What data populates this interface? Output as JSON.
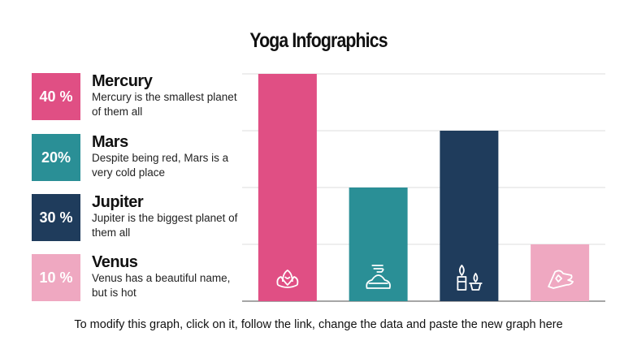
{
  "title": "Yoga Infographics",
  "items": [
    {
      "pct": "40 %",
      "name": "Mercury",
      "desc": "Mercury is the smallest planet of them all",
      "color": "#e04f84"
    },
    {
      "pct": "20%",
      "name": "Mars",
      "desc": "Despite being red, Mars is a very cold place",
      "color": "#2a8f96"
    },
    {
      "pct": "30 %",
      "name": "Jupiter",
      "desc": "Jupiter is the biggest planet of them all",
      "color": "#1f3c5c"
    },
    {
      "pct": "10 %",
      "name": "Venus",
      "desc": "Venus has a beautiful name, but is hot",
      "color": "#efa8c1"
    }
  ],
  "footer": "To modify this graph, click on it, follow the link, change the data and paste the new graph here",
  "chart_data": {
    "type": "bar",
    "categories": [
      "Mercury",
      "Mars",
      "Jupiter",
      "Venus"
    ],
    "values": [
      40,
      20,
      30,
      10
    ],
    "colors": [
      "#e04f84",
      "#2a8f96",
      "#1f3c5c",
      "#efa8c1"
    ],
    "icons": [
      "lotus-icon",
      "incense-icon",
      "candles-icon",
      "mudra-hand-icon"
    ],
    "ylim": [
      0,
      40
    ],
    "grid": true
  }
}
